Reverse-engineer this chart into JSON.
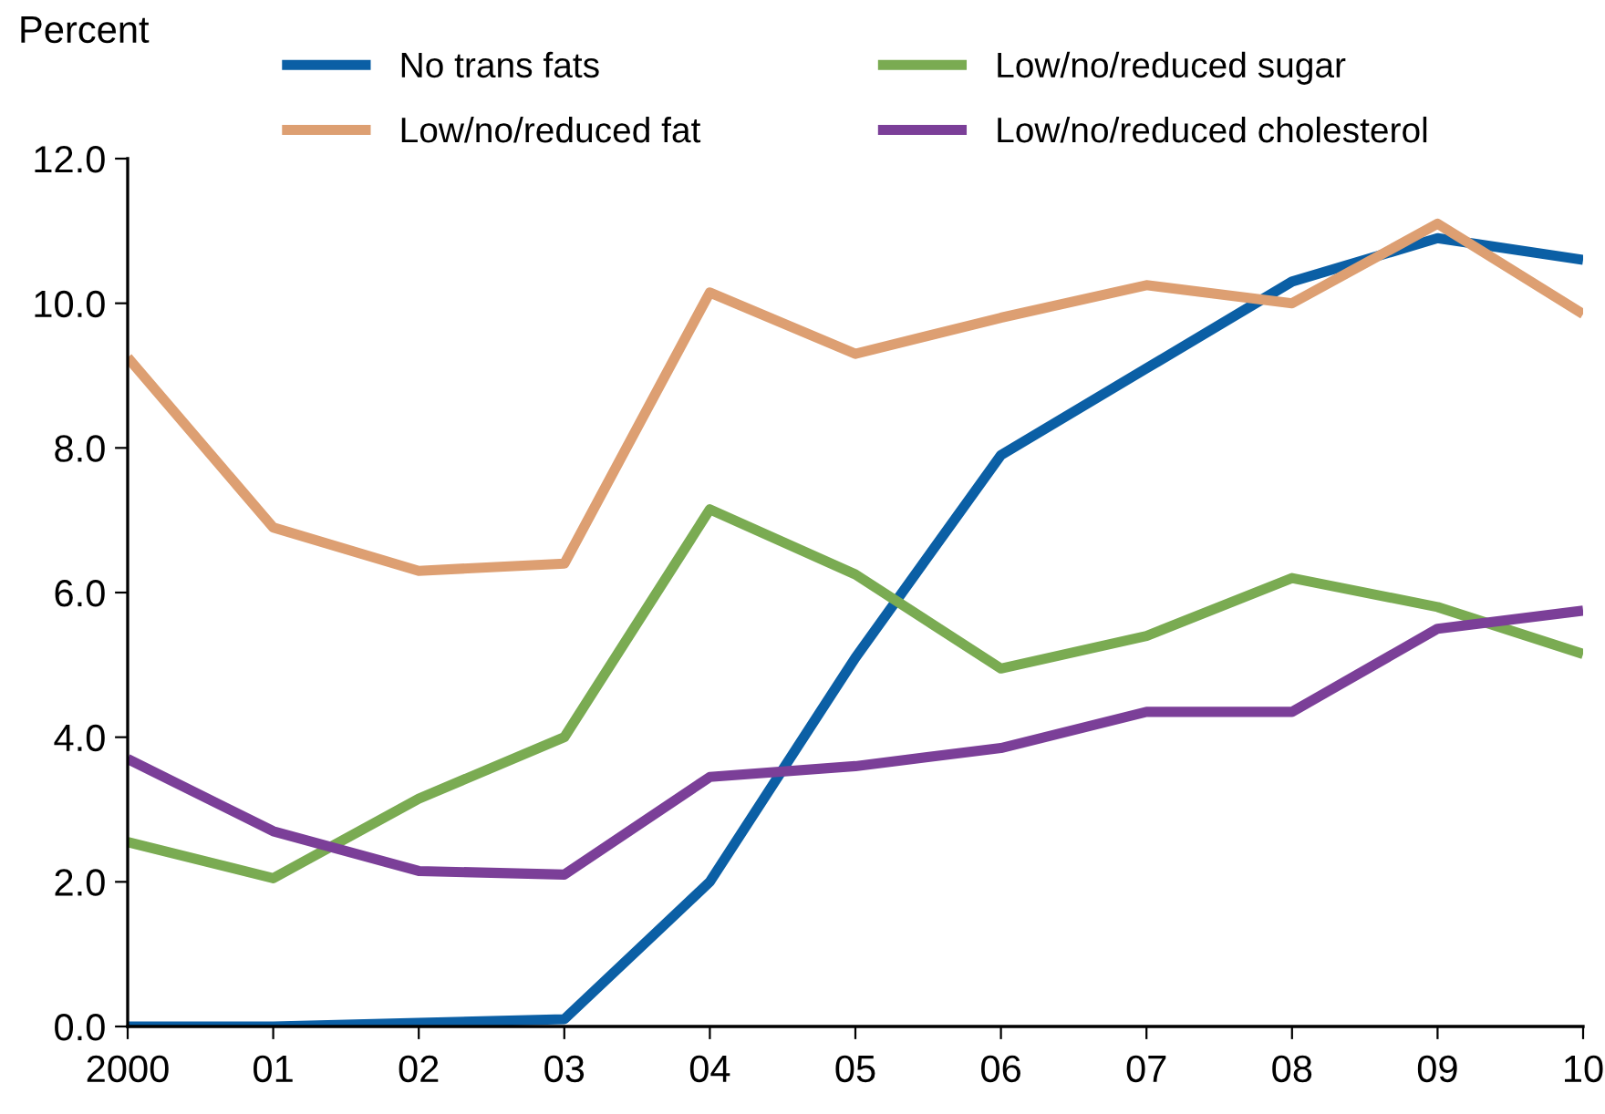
{
  "chart_data": {
    "type": "line",
    "ylabel": "Percent",
    "categories": [
      "2000",
      "01",
      "02",
      "03",
      "04",
      "05",
      "06",
      "07",
      "08",
      "09",
      "10"
    ],
    "series": [
      {
        "name": "No trans fats",
        "color": "#0b5fa5",
        "values": [
          0.0,
          0.0,
          0.05,
          0.1,
          2.0,
          5.1,
          7.9,
          9.1,
          10.3,
          10.9,
          10.6
        ]
      },
      {
        "name": "Low/no/reduced fat",
        "color": "#dd9f72",
        "values": [
          9.25,
          6.9,
          6.3,
          6.4,
          10.15,
          9.3,
          9.8,
          10.25,
          10.0,
          11.1,
          9.85
        ]
      },
      {
        "name": "Low/no/reduced sugar",
        "color": "#7aab52",
        "values": [
          2.55,
          2.05,
          3.15,
          4.0,
          7.15,
          6.25,
          4.95,
          5.4,
          6.2,
          5.8,
          5.15
        ]
      },
      {
        "name": "Low/no/reduced cholesterol",
        "color": "#7b3f98",
        "values": [
          3.7,
          2.7,
          2.15,
          2.1,
          3.45,
          3.6,
          3.85,
          4.35,
          4.35,
          5.5,
          5.75
        ]
      }
    ],
    "ylim": [
      0,
      12
    ],
    "yticks": [
      {
        "value": 0,
        "label": "0.0"
      },
      {
        "value": 2,
        "label": "2.0"
      },
      {
        "value": 4,
        "label": "4.0"
      },
      {
        "value": 6,
        "label": "6.0"
      },
      {
        "value": 8,
        "label": "8.0"
      },
      {
        "value": 10,
        "label": "10.0"
      },
      {
        "value": 12,
        "label": "12.0"
      }
    ],
    "legend": "top",
    "grid": false,
    "marker": "none",
    "line_style": "solid"
  }
}
